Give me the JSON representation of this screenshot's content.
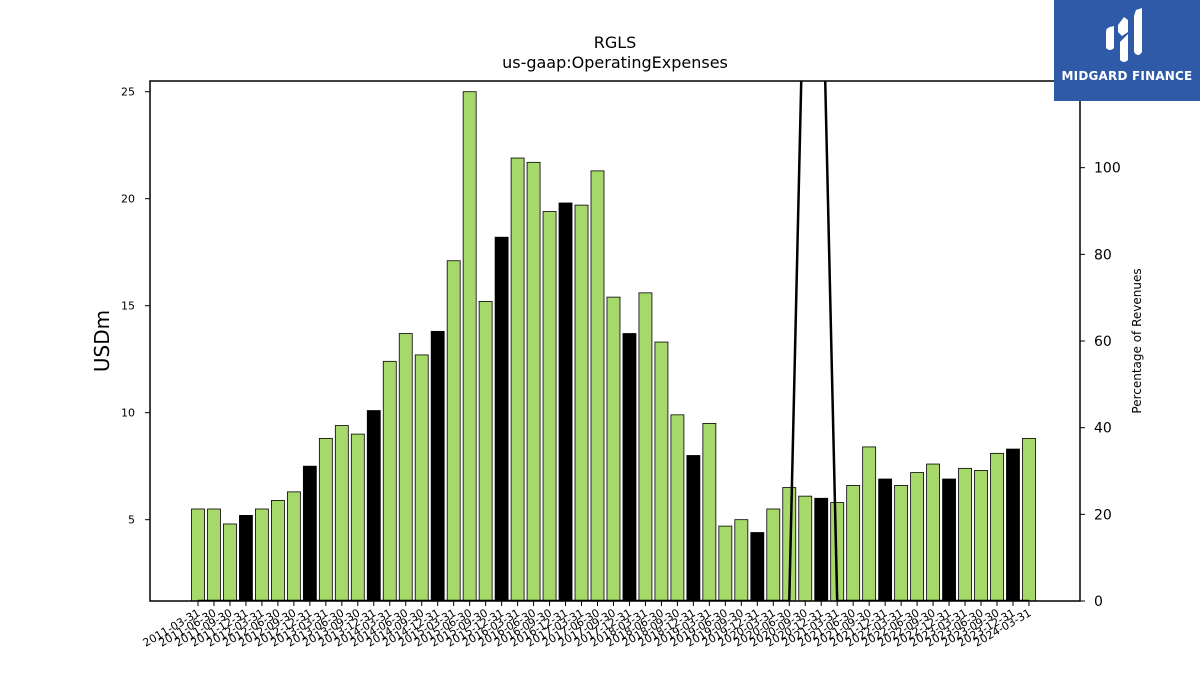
{
  "chart_data": {
    "type": "bar",
    "title": "RGLS",
    "subtitle": "us-gaap:OperatingExpenses",
    "ylabel": "USDm",
    "y2label": "Percentage of Revenues",
    "ylim": [
      1.2,
      25.5
    ],
    "y2lim": [
      0,
      120
    ],
    "yticks": [
      5,
      10,
      15,
      20,
      25
    ],
    "y2ticks": [
      0,
      20,
      40,
      60,
      80,
      100
    ],
    "categories": [
      "2011-03-31",
      "2011-06-30",
      "2011-09-30",
      "2011-12-31",
      "2012-03-31",
      "2012-06-30",
      "2012-09-30",
      "2012-12-31",
      "2013-03-31",
      "2013-06-30",
      "2013-09-30",
      "2013-12-31",
      "2014-03-31",
      "2014-06-30",
      "2014-09-30",
      "2014-12-31",
      "2015-03-31",
      "2015-06-30",
      "2015-09-30",
      "2015-12-31",
      "2016-03-31",
      "2016-06-30",
      "2016-09-30",
      "2016-12-31",
      "2017-03-31",
      "2017-06-30",
      "2017-09-30",
      "2017-12-31",
      "2018-03-31",
      "2018-06-30",
      "2018-09-30",
      "2018-12-31",
      "2019-03-31",
      "2019-06-30",
      "2019-09-30",
      "2019-12-31",
      "2020-03-31",
      "2020-06-30",
      "2020-09-30",
      "2020-12-31",
      "2021-03-31",
      "2021-06-30",
      "2021-09-30",
      "2021-12-31",
      "2022-03-31",
      "2022-06-30",
      "2022-09-30",
      "2022-12-31",
      "2023-03-31",
      "2023-06-30",
      "2023-09-30",
      "2023-12-31",
      "2024-03-31"
    ],
    "series": [
      {
        "values": [
          5.5,
          5.5,
          4.8,
          5.2,
          5.5,
          5.9,
          6.3,
          7.5,
          8.8,
          9.4,
          9.0,
          10.1,
          12.4,
          13.7,
          12.7,
          13.8,
          17.1,
          25.0,
          15.2,
          18.2,
          21.9,
          21.7,
          19.4,
          19.8,
          19.7,
          21.3,
          15.4,
          13.7,
          15.6,
          13.3,
          9.9,
          8.0,
          9.5,
          4.7,
          5.0,
          4.4,
          5.5,
          6.5,
          6.1,
          6.0,
          5.8,
          6.6,
          8.4,
          6.9,
          6.6,
          7.2,
          7.6,
          6.9,
          7.4,
          7.3,
          8.1,
          8.3,
          8.8
        ],
        "colors": [
          "#a6d96a",
          "#a6d96a",
          "#a6d96a",
          "#000000",
          "#a6d96a",
          "#a6d96a",
          "#a6d96a",
          "#000000",
          "#a6d96a",
          "#a6d96a",
          "#a6d96a",
          "#000000",
          "#a6d96a",
          "#a6d96a",
          "#a6d96a",
          "#000000",
          "#a6d96a",
          "#a6d96a",
          "#a6d96a",
          "#000000",
          "#a6d96a",
          "#a6d96a",
          "#a6d96a",
          "#000000",
          "#a6d96a",
          "#a6d96a",
          "#a6d96a",
          "#000000",
          "#a6d96a",
          "#a6d96a",
          "#a6d96a",
          "#000000",
          "#a6d96a",
          "#a6d96a",
          "#a6d96a",
          "#000000",
          "#a6d96a",
          "#a6d96a",
          "#a6d96a",
          "#000000",
          "#a6d96a",
          "#a6d96a",
          "#a6d96a",
          "#000000",
          "#a6d96a",
          "#a6d96a",
          "#a6d96a",
          "#000000",
          "#a6d96a",
          "#a6d96a",
          "#a6d96a",
          "#000000",
          "#a6d96a"
        ]
      }
    ],
    "pct_line": {
      "values": [
        0,
        0,
        0,
        0,
        0,
        0,
        0,
        0,
        0,
        0,
        0,
        0,
        0,
        0,
        0,
        0,
        0,
        0,
        0,
        0,
        0,
        0,
        0,
        0,
        0,
        0,
        0,
        0,
        0,
        0,
        0,
        0,
        0,
        0,
        0,
        0,
        0,
        0,
        160,
        160,
        0,
        0,
        0,
        0,
        0,
        0,
        0,
        0,
        0,
        0,
        0,
        0,
        0
      ],
      "color": "#000000"
    },
    "grid": false,
    "legend": "none"
  },
  "logo": {
    "text": "MIDGARD FINANCE",
    "bg_color": "#2f5aa8"
  }
}
